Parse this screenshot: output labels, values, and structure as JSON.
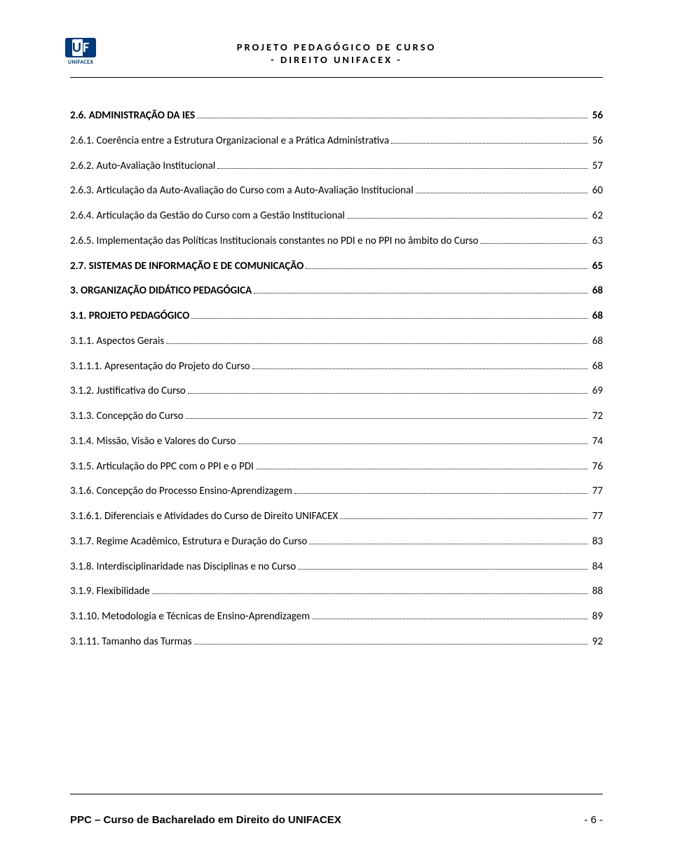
{
  "header": {
    "logo_text": "UNIFACEX",
    "title1": "PROJETO PEDAGÓGICO DE CURSO",
    "title2": "- DIREITO UNIFACEX -"
  },
  "toc": [
    {
      "label": "2.6. ADMINISTRAÇÃO DA IES",
      "page": "56",
      "bold": true
    },
    {
      "label": "2.6.1. Coerência entre a Estrutura Organizacional e a Prática Administrativa",
      "page": "56"
    },
    {
      "label": "2.6.2. Auto-Avaliação Institucional",
      "page": "57"
    },
    {
      "label": "2.6.3. Articulação da Auto-Avaliação do Curso com a Auto-Avaliação Institucional",
      "page": "60"
    },
    {
      "label": "2.6.4. Articulação da Gestão do Curso com a Gestão Institucional",
      "page": "62"
    },
    {
      "label": "2.6.5. Implementação das Políticas Institucionais constantes no PDI e no PPI no âmbito do Curso",
      "page": "63",
      "wrap": true
    },
    {
      "label": "2.7. SISTEMAS DE INFORMAÇÃO E DE COMUNICAÇÃO",
      "page": "65",
      "bold": true
    },
    {
      "label": "3. ORGANIZAÇÃO DIDÁTICO PEDAGÓGICA",
      "page": "68",
      "bold": true
    },
    {
      "label": "3.1. PROJETO PEDAGÓGICO",
      "page": "68",
      "bold": true
    },
    {
      "label": "3.1.1. Aspectos Gerais",
      "page": "68"
    },
    {
      "label": "3.1.1.1. Apresentação do Projeto do Curso",
      "page": "68"
    },
    {
      "label": "3.1.2. Justificativa do Curso",
      "page": "69"
    },
    {
      "label": "3.1.3. Concepção do Curso",
      "page": "72"
    },
    {
      "label": "3.1.4. Missão, Visão e Valores do Curso",
      "page": "74"
    },
    {
      "label": "3.1.5. Articulação do PPC com o PPI e o PDI",
      "page": "76"
    },
    {
      "label": "3.1.6. Concepção do Processo Ensino-Aprendizagem",
      "page": "77"
    },
    {
      "label": "3.1.6.1. Diferenciais e Atividades do Curso de Direito UNIFACEX",
      "page": "77"
    },
    {
      "label": "3.1.7. Regime Acadêmico, Estrutura e Duração do Curso",
      "page": "83"
    },
    {
      "label": "3.1.8. Interdisciplinaridade nas Disciplinas e no Curso",
      "page": "84"
    },
    {
      "label": "3.1.9. Flexibilidade",
      "page": "88"
    },
    {
      "label": "3.1.10. Metodologia e Técnicas de Ensino-Aprendizagem",
      "page": "89"
    },
    {
      "label": "3.1.11. Tamanho das Turmas",
      "page": "92"
    }
  ],
  "footer": {
    "left": "PPC – Curso de Bacharelado em Direito do UNIFACEX",
    "right": "- 6 -"
  }
}
